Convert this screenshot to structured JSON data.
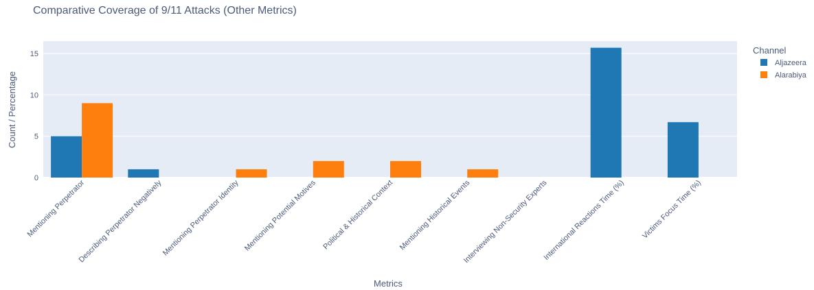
{
  "chart_data": {
    "type": "bar",
    "title": "Comparative Coverage of 9/11 Attacks (Other Metrics)",
    "xlabel": "Metrics",
    "ylabel": "Count / Percentage",
    "categories": [
      "Mentioning Perpetrator",
      "Describing Perpetrator Negatively",
      "Mentioning Perpetrator Identity",
      "Mentioning Potential Motives",
      "Political & Historical Context",
      "Mentioning Historical Events",
      "Interviewing Non-Security Experts",
      "International Reactions Time (%)",
      "Victims Focus Time (%)"
    ],
    "series": [
      {
        "name": "Aljazeera",
        "color": "#1f77b4",
        "values": [
          5,
          1,
          0,
          0,
          0,
          0,
          0,
          15.7,
          6.7
        ]
      },
      {
        "name": "Alarabiya",
        "color": "#ff7f0e",
        "values": [
          9,
          0,
          1,
          2,
          2,
          1,
          0,
          0,
          0
        ]
      }
    ],
    "ylim": [
      0,
      16.5
    ],
    "yticks": [
      0,
      5,
      10,
      15
    ],
    "legend": {
      "title": "Channel",
      "placement": "top-right"
    },
    "grid": true
  }
}
